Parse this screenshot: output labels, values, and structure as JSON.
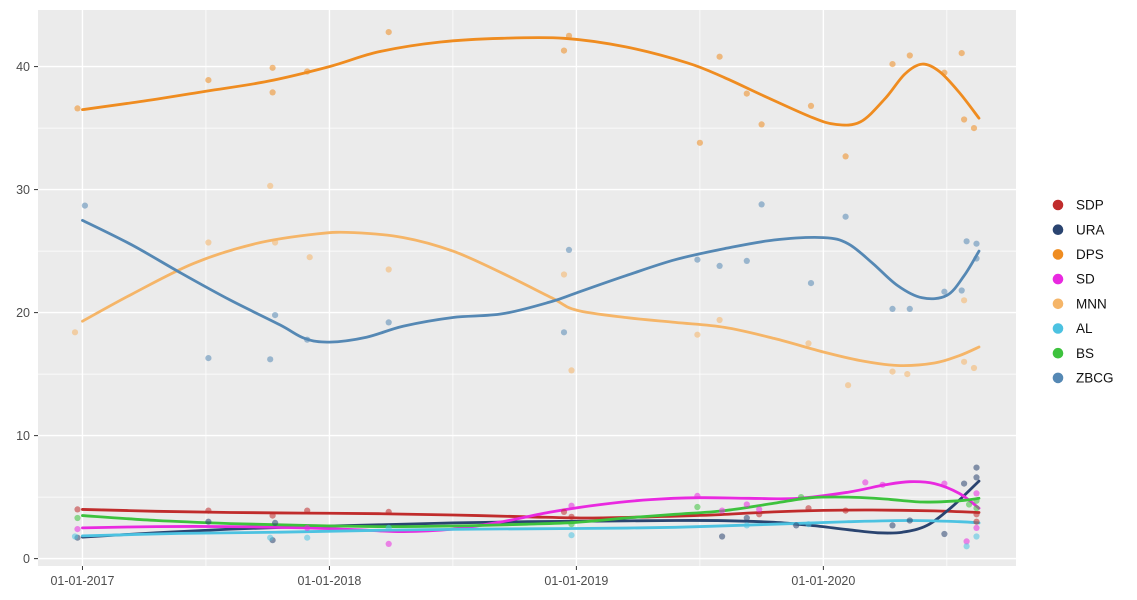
{
  "figure": {
    "background": "#ffffff",
    "panel_background": "#ebebeb",
    "grid_color": "#ffffff",
    "axis_text_color": "#4d4d4d",
    "tick_mark_color": "#333333",
    "legend_text_color": "#111111"
  },
  "chart_data": {
    "type": "scatter",
    "smoothing": "loess",
    "title": "",
    "xlabel": "",
    "ylabel": "",
    "grid": true,
    "legend_position": "right",
    "x_axis": {
      "tick_labels": [
        "01-01-2017",
        "01-01-2018",
        "01-01-2019",
        "01-01-2020"
      ],
      "tick_years": [
        2017,
        2018,
        2019,
        2020
      ],
      "minor_years": [
        2017.5,
        2018.5,
        2019.5,
        2020.5
      ],
      "range_years": [
        2016.82,
        2020.78
      ]
    },
    "y_axis": {
      "tick_labels": [
        "0",
        "10",
        "20",
        "30",
        "40"
      ],
      "ticks": [
        0,
        10,
        20,
        30,
        40
      ],
      "minor": [
        5,
        15,
        25,
        35
      ],
      "range": [
        -0.6,
        44.6
      ]
    },
    "series": [
      {
        "name": "SDP",
        "color": "#c02c2c",
        "points": [
          [
            2016.98,
            4.0
          ],
          [
            2017.51,
            3.9
          ],
          [
            2017.77,
            3.5
          ],
          [
            2017.91,
            3.9
          ],
          [
            2018.24,
            3.8
          ],
          [
            2018.95,
            3.8
          ],
          [
            2018.98,
            3.4
          ],
          [
            2019.74,
            3.6
          ],
          [
            2019.94,
            4.1
          ],
          [
            2020.09,
            3.9
          ],
          [
            2020.62,
            3.6
          ],
          [
            2020.62,
            3.0
          ]
        ],
        "trend": [
          [
            2017.0,
            4.0
          ],
          [
            2017.3,
            3.85
          ],
          [
            2017.6,
            3.75
          ],
          [
            2017.9,
            3.7
          ],
          [
            2018.2,
            3.65
          ],
          [
            2018.5,
            3.55
          ],
          [
            2018.8,
            3.4
          ],
          [
            2019.05,
            3.3
          ],
          [
            2019.3,
            3.4
          ],
          [
            2019.55,
            3.55
          ],
          [
            2019.8,
            3.8
          ],
          [
            2020.0,
            3.92
          ],
          [
            2020.2,
            3.95
          ],
          [
            2020.45,
            3.88
          ],
          [
            2020.63,
            3.75
          ]
        ]
      },
      {
        "name": "URA",
        "color": "#2a4470",
        "points": [
          [
            2016.98,
            1.7
          ],
          [
            2017.51,
            3.0
          ],
          [
            2017.77,
            1.5
          ],
          [
            2017.78,
            2.9
          ],
          [
            2019.59,
            1.8
          ],
          [
            2019.69,
            3.3
          ],
          [
            2019.89,
            2.7
          ],
          [
            2020.28,
            2.7
          ],
          [
            2020.35,
            3.1
          ],
          [
            2020.49,
            2.0
          ],
          [
            2020.57,
            6.1
          ],
          [
            2020.62,
            7.4
          ],
          [
            2020.62,
            6.6
          ]
        ],
        "trend": [
          [
            2017.0,
            1.75
          ],
          [
            2017.3,
            2.1
          ],
          [
            2017.6,
            2.4
          ],
          [
            2017.9,
            2.6
          ],
          [
            2018.2,
            2.75
          ],
          [
            2018.5,
            2.9
          ],
          [
            2018.8,
            3.0
          ],
          [
            2019.1,
            3.05
          ],
          [
            2019.4,
            3.1
          ],
          [
            2019.6,
            3.08
          ],
          [
            2019.8,
            2.95
          ],
          [
            2019.95,
            2.7
          ],
          [
            2020.1,
            2.35
          ],
          [
            2020.22,
            2.1
          ],
          [
            2020.32,
            2.15
          ],
          [
            2020.42,
            2.7
          ],
          [
            2020.52,
            4.2
          ],
          [
            2020.63,
            6.3
          ]
        ]
      },
      {
        "name": "DPS",
        "color": "#ef8c20",
        "points": [
          [
            2016.98,
            36.6
          ],
          [
            2017.51,
            38.9
          ],
          [
            2017.77,
            37.9
          ],
          [
            2017.77,
            39.9
          ],
          [
            2017.91,
            39.6
          ],
          [
            2018.24,
            42.8
          ],
          [
            2018.95,
            41.3
          ],
          [
            2018.97,
            42.5
          ],
          [
            2019.5,
            33.8
          ],
          [
            2019.58,
            40.8
          ],
          [
            2019.69,
            37.8
          ],
          [
            2019.75,
            35.3
          ],
          [
            2019.95,
            36.8
          ],
          [
            2020.09,
            32.7
          ],
          [
            2020.28,
            40.2
          ],
          [
            2020.35,
            40.9
          ],
          [
            2020.49,
            39.5
          ],
          [
            2020.56,
            41.1
          ],
          [
            2020.57,
            35.7
          ],
          [
            2020.61,
            35.0
          ]
        ],
        "trend": [
          [
            2017.0,
            36.5
          ],
          [
            2017.25,
            37.2
          ],
          [
            2017.5,
            38.0
          ],
          [
            2017.75,
            38.8
          ],
          [
            2018.0,
            40.0
          ],
          [
            2018.2,
            41.2
          ],
          [
            2018.45,
            42.0
          ],
          [
            2018.7,
            42.3
          ],
          [
            2018.95,
            42.3
          ],
          [
            2019.2,
            41.6
          ],
          [
            2019.45,
            40.3
          ],
          [
            2019.6,
            39.1
          ],
          [
            2019.75,
            37.7
          ],
          [
            2019.95,
            35.9
          ],
          [
            2020.05,
            35.3
          ],
          [
            2020.15,
            35.5
          ],
          [
            2020.25,
            37.4
          ],
          [
            2020.33,
            39.4
          ],
          [
            2020.4,
            40.2
          ],
          [
            2020.47,
            39.6
          ],
          [
            2020.55,
            37.9
          ],
          [
            2020.63,
            35.8
          ]
        ]
      },
      {
        "name": "SD",
        "color": "#e929e0",
        "points": [
          [
            2016.98,
            2.4
          ],
          [
            2017.91,
            2.5
          ],
          [
            2018.24,
            1.2
          ],
          [
            2018.98,
            4.3
          ],
          [
            2019.49,
            5.1
          ],
          [
            2019.59,
            3.9
          ],
          [
            2019.69,
            4.4
          ],
          [
            2019.74,
            4.0
          ],
          [
            2020.17,
            6.2
          ],
          [
            2020.24,
            6.0
          ],
          [
            2020.49,
            6.1
          ],
          [
            2020.58,
            1.4
          ],
          [
            2020.62,
            5.3
          ],
          [
            2020.62,
            2.5
          ]
        ],
        "trend": [
          [
            2017.0,
            2.5
          ],
          [
            2017.3,
            2.6
          ],
          [
            2017.6,
            2.6
          ],
          [
            2017.9,
            2.5
          ],
          [
            2018.1,
            2.35
          ],
          [
            2018.3,
            2.2
          ],
          [
            2018.5,
            2.4
          ],
          [
            2018.7,
            3.0
          ],
          [
            2018.9,
            3.8
          ],
          [
            2019.1,
            4.4
          ],
          [
            2019.3,
            4.8
          ],
          [
            2019.5,
            4.95
          ],
          [
            2019.7,
            4.9
          ],
          [
            2019.9,
            4.9
          ],
          [
            2020.1,
            5.4
          ],
          [
            2020.25,
            6.0
          ],
          [
            2020.35,
            6.25
          ],
          [
            2020.45,
            6.1
          ],
          [
            2020.55,
            5.3
          ],
          [
            2020.63,
            4.1
          ]
        ]
      },
      {
        "name": "MNN",
        "color": "#f5b568",
        "points": [
          [
            2016.97,
            18.4
          ],
          [
            2017.51,
            25.7
          ],
          [
            2017.76,
            30.3
          ],
          [
            2017.78,
            25.7
          ],
          [
            2017.92,
            24.5
          ],
          [
            2018.24,
            23.5
          ],
          [
            2018.95,
            23.1
          ],
          [
            2018.98,
            15.3
          ],
          [
            2019.49,
            18.2
          ],
          [
            2019.58,
            19.4
          ],
          [
            2019.94,
            17.5
          ],
          [
            2020.1,
            14.1
          ],
          [
            2020.28,
            15.2
          ],
          [
            2020.34,
            15.0
          ],
          [
            2020.57,
            21.0
          ],
          [
            2020.57,
            16.0
          ],
          [
            2020.61,
            15.5
          ]
        ],
        "trend": [
          [
            2017.0,
            19.3
          ],
          [
            2017.2,
            21.5
          ],
          [
            2017.45,
            24.0
          ],
          [
            2017.7,
            25.6
          ],
          [
            2017.95,
            26.4
          ],
          [
            2018.1,
            26.5
          ],
          [
            2018.3,
            26.1
          ],
          [
            2018.5,
            25.0
          ],
          [
            2018.7,
            23.2
          ],
          [
            2018.9,
            21.2
          ],
          [
            2019.0,
            20.2
          ],
          [
            2019.2,
            19.6
          ],
          [
            2019.4,
            19.2
          ],
          [
            2019.6,
            18.8
          ],
          [
            2019.8,
            17.9
          ],
          [
            2020.0,
            16.8
          ],
          [
            2020.15,
            16.1
          ],
          [
            2020.3,
            15.7
          ],
          [
            2020.45,
            15.9
          ],
          [
            2020.55,
            16.5
          ],
          [
            2020.63,
            17.2
          ]
        ]
      },
      {
        "name": "AL",
        "color": "#4cc2e1",
        "points": [
          [
            2016.97,
            1.8
          ],
          [
            2017.76,
            1.7
          ],
          [
            2017.91,
            1.7
          ],
          [
            2018.24,
            2.5
          ],
          [
            2018.98,
            1.9
          ],
          [
            2019.69,
            2.7
          ],
          [
            2019.94,
            2.8
          ],
          [
            2020.58,
            1.0
          ],
          [
            2020.62,
            1.8
          ]
        ],
        "trend": [
          [
            2017.0,
            1.85
          ],
          [
            2017.4,
            2.05
          ],
          [
            2017.8,
            2.15
          ],
          [
            2018.2,
            2.3
          ],
          [
            2018.6,
            2.4
          ],
          [
            2019.0,
            2.45
          ],
          [
            2019.4,
            2.55
          ],
          [
            2019.8,
            2.8
          ],
          [
            2020.1,
            3.0
          ],
          [
            2020.35,
            3.1
          ],
          [
            2020.55,
            3.0
          ],
          [
            2020.63,
            2.9
          ]
        ]
      },
      {
        "name": "BS",
        "color": "#3dc23d",
        "points": [
          [
            2016.98,
            3.3
          ],
          [
            2018.98,
            2.8
          ],
          [
            2019.49,
            4.2
          ],
          [
            2019.91,
            5.0
          ],
          [
            2020.59,
            4.4
          ],
          [
            2020.62,
            4.7
          ],
          [
            2020.62,
            4.1
          ]
        ],
        "trend": [
          [
            2017.0,
            3.5
          ],
          [
            2017.3,
            3.1
          ],
          [
            2017.6,
            2.85
          ],
          [
            2017.9,
            2.7
          ],
          [
            2018.2,
            2.6
          ],
          [
            2018.5,
            2.65
          ],
          [
            2018.8,
            2.8
          ],
          [
            2019.0,
            2.95
          ],
          [
            2019.2,
            3.3
          ],
          [
            2019.4,
            3.6
          ],
          [
            2019.6,
            3.9
          ],
          [
            2019.8,
            4.5
          ],
          [
            2019.95,
            4.95
          ],
          [
            2020.1,
            5.0
          ],
          [
            2020.25,
            4.85
          ],
          [
            2020.4,
            4.6
          ],
          [
            2020.55,
            4.7
          ],
          [
            2020.63,
            4.9
          ]
        ]
      },
      {
        "name": "ZBCG",
        "color": "#5588b4",
        "points": [
          [
            2017.01,
            28.7
          ],
          [
            2017.51,
            16.3
          ],
          [
            2017.76,
            16.2
          ],
          [
            2017.78,
            19.8
          ],
          [
            2017.91,
            17.8
          ],
          [
            2018.24,
            19.2
          ],
          [
            2018.95,
            18.4
          ],
          [
            2018.97,
            25.1
          ],
          [
            2019.49,
            24.3
          ],
          [
            2019.58,
            23.8
          ],
          [
            2019.69,
            24.2
          ],
          [
            2019.75,
            28.8
          ],
          [
            2019.95,
            22.4
          ],
          [
            2020.09,
            27.8
          ],
          [
            2020.28,
            20.3
          ],
          [
            2020.35,
            20.3
          ],
          [
            2020.49,
            21.7
          ],
          [
            2020.56,
            21.8
          ],
          [
            2020.58,
            25.8
          ],
          [
            2020.62,
            25.6
          ],
          [
            2020.62,
            24.4
          ]
        ],
        "trend": [
          [
            2017.0,
            27.5
          ],
          [
            2017.2,
            25.5
          ],
          [
            2017.4,
            23.2
          ],
          [
            2017.6,
            21.0
          ],
          [
            2017.8,
            19.0
          ],
          [
            2017.9,
            17.9
          ],
          [
            2018.0,
            17.6
          ],
          [
            2018.15,
            18.0
          ],
          [
            2018.3,
            18.9
          ],
          [
            2018.5,
            19.6
          ],
          [
            2018.7,
            19.9
          ],
          [
            2018.9,
            20.9
          ],
          [
            2019.0,
            21.6
          ],
          [
            2019.2,
            23.0
          ],
          [
            2019.4,
            24.3
          ],
          [
            2019.6,
            25.2
          ],
          [
            2019.8,
            25.9
          ],
          [
            2020.0,
            26.1
          ],
          [
            2020.1,
            25.6
          ],
          [
            2020.2,
            24.0
          ],
          [
            2020.3,
            22.2
          ],
          [
            2020.4,
            21.2
          ],
          [
            2020.5,
            21.4
          ],
          [
            2020.57,
            23.0
          ],
          [
            2020.63,
            25.0
          ]
        ]
      }
    ],
    "legend": {
      "labels": [
        "SDP",
        "URA",
        "DPS",
        "SD",
        "MNN",
        "AL",
        "BS",
        "ZBCG"
      ]
    }
  }
}
